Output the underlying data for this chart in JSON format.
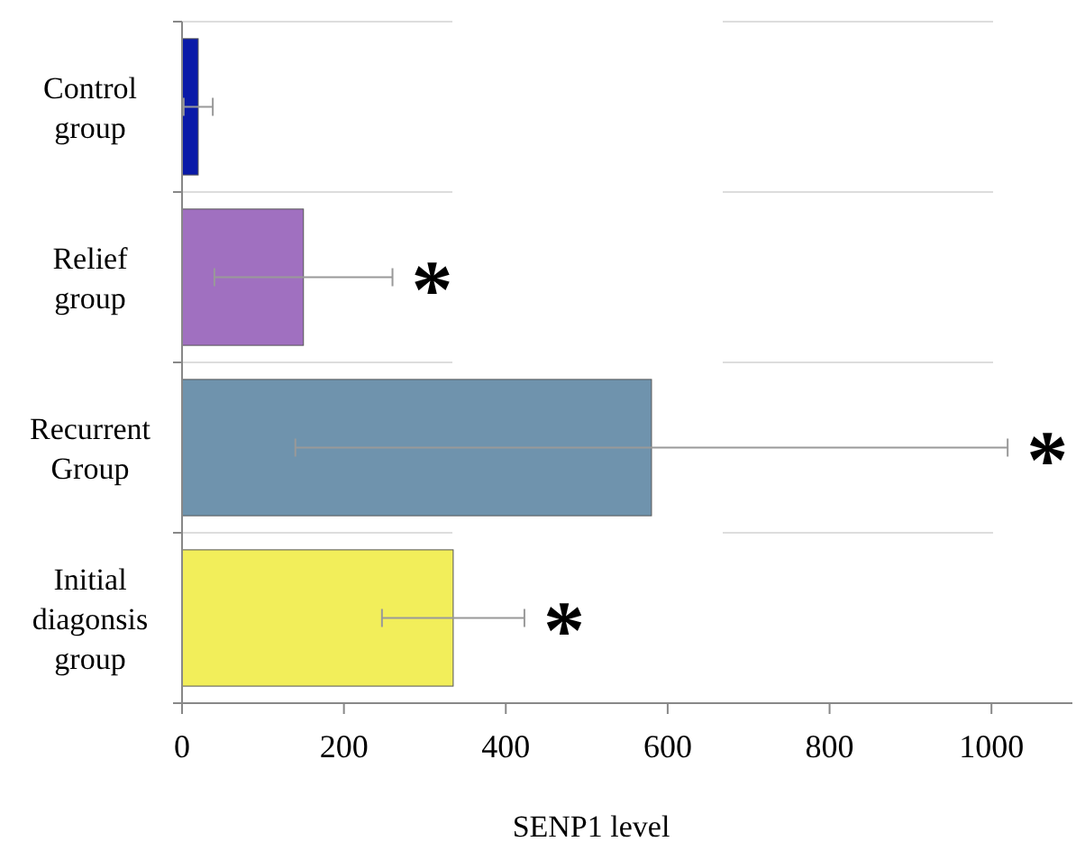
{
  "chart_data": {
    "type": "bar",
    "orientation": "horizontal",
    "xlabel": "SENP1 level",
    "categories": [
      "Control group",
      "Relief group",
      "Recurrent Group",
      "Initial diagonsis group"
    ],
    "values": [
      20,
      150,
      580,
      335
    ],
    "errors": [
      18,
      110,
      440,
      88
    ],
    "colors": [
      "#0a1aa8",
      "#a070c0",
      "#6f93ad",
      "#f2ee5a"
    ],
    "xlim": [
      0,
      1100
    ],
    "xticks": [
      0,
      200,
      400,
      600,
      800,
      1000
    ],
    "grid": "y",
    "annotations": [
      "*",
      "*",
      "*"
    ]
  }
}
